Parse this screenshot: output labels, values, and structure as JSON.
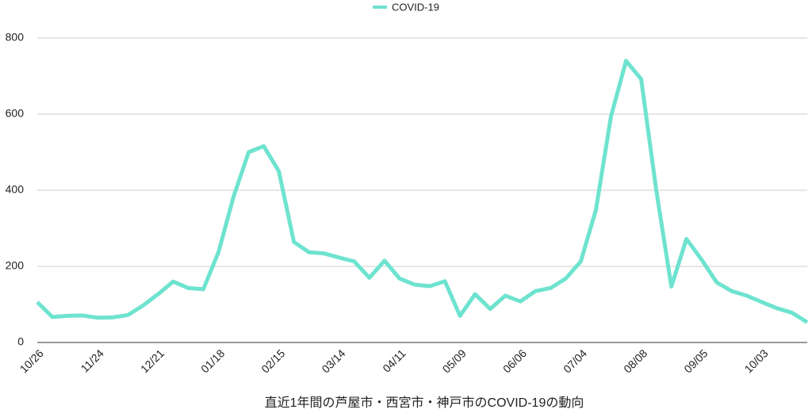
{
  "chart_data": {
    "type": "line",
    "title": "直近1年間の芦屋市・西宮市・神戸市のCOVID-19の動向",
    "categories": [
      "10/26",
      null,
      null,
      null,
      "11/24",
      null,
      null,
      null,
      "12/21",
      null,
      null,
      null,
      "01/18",
      null,
      null,
      null,
      "02/15",
      null,
      null,
      null,
      "03/14",
      null,
      null,
      null,
      "04/11",
      null,
      null,
      null,
      "05/09",
      null,
      null,
      null,
      "06/06",
      null,
      null,
      null,
      "07/04",
      null,
      null,
      null,
      "08/08",
      null,
      null,
      null,
      "09/05",
      null,
      null,
      null,
      "10/03",
      null,
      null,
      null
    ],
    "series": [
      {
        "name": "COVID-19",
        "color": "#6ee3cf",
        "values": [
          106,
          67,
          70,
          71,
          65,
          66,
          72,
          97,
          127,
          160,
          143,
          140,
          237,
          383,
          500,
          516,
          450,
          264,
          237,
          234,
          223,
          213,
          170,
          215,
          168,
          152,
          148,
          161,
          70,
          127,
          88,
          123,
          108,
          135,
          143,
          168,
          213,
          348,
          594,
          740,
          692,
          400,
          147,
          272,
          218,
          158,
          135,
          123,
          106,
          90,
          78,
          53
        ]
      }
    ],
    "ylim": [
      0,
      800
    ],
    "yticks": [
      0,
      200,
      400,
      600,
      800
    ],
    "grid": true,
    "legend": "top"
  }
}
